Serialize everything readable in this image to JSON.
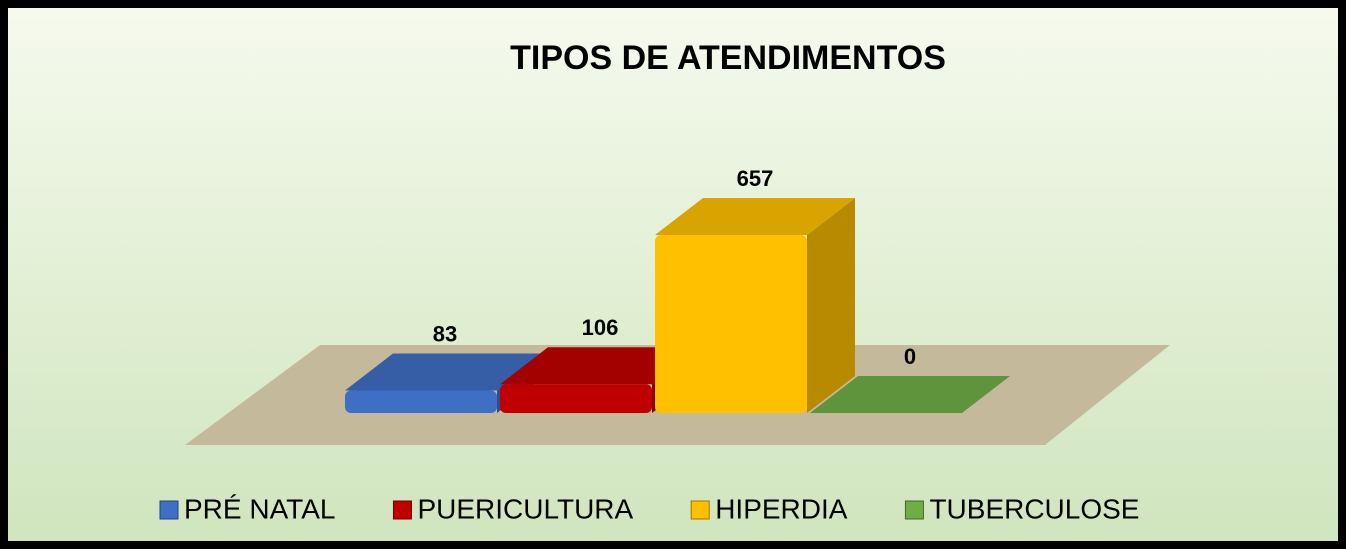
{
  "chart_data": {
    "type": "bar3d",
    "title": "TIPOS DE ATENDIMENTOS",
    "categories": [
      "PRÉ NATAL",
      "PUERICULTURA",
      "HIPERDIA",
      "TUBERCULOSE"
    ],
    "values": [
      83,
      106,
      657,
      0
    ],
    "colors": [
      "#3f6fc4",
      "#c00000",
      "#ffc000",
      "#70ad47"
    ],
    "legend": "bottom"
  }
}
